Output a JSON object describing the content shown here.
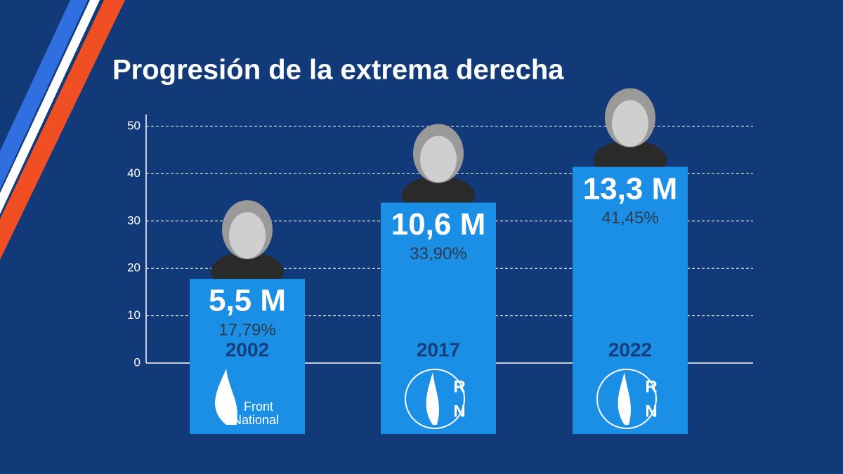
{
  "chart_data": {
    "type": "bar",
    "title": "Progresión de la extrema derecha",
    "categories": [
      "2002",
      "2017",
      "2022"
    ],
    "values": [
      17.79,
      33.9,
      41.45
    ],
    "value_labels": [
      "17,79%",
      "33,90%",
      "41,45%"
    ],
    "votes": [
      5500000,
      10600000,
      13300000
    ],
    "votes_labels": [
      "5,5 M",
      "10,6 M",
      "13,3 M"
    ],
    "logos": [
      [
        "Front",
        "National"
      ],
      [
        "R",
        "N"
      ],
      [
        "R",
        "N"
      ]
    ],
    "color": "#1b8ee6",
    "ylim": [
      0,
      50
    ],
    "yticks": [
      0,
      10,
      20,
      30,
      40,
      50
    ],
    "grid": true
  }
}
